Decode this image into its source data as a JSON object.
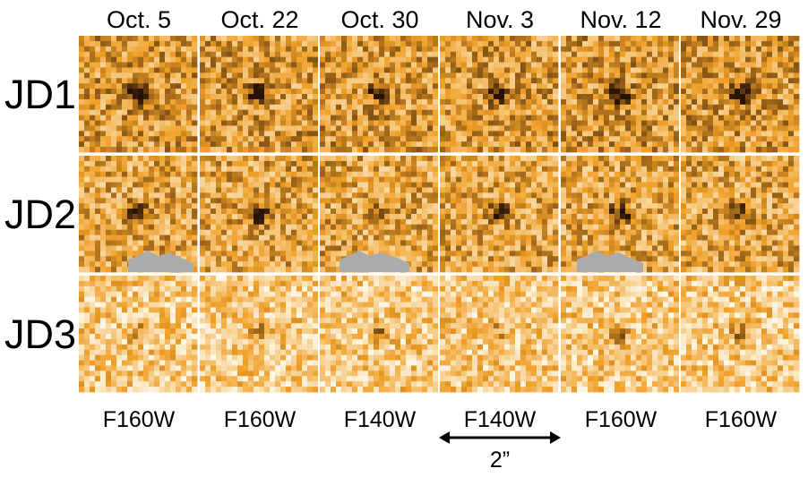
{
  "columns": [
    {
      "date": "Oct. 5",
      "filter": "F160W"
    },
    {
      "date": "Oct. 22",
      "filter": "F160W"
    },
    {
      "date": "Oct. 30",
      "filter": "F140W"
    },
    {
      "date": "Nov. 3",
      "filter": "F140W"
    },
    {
      "date": "Nov. 12",
      "filter": "F160W"
    },
    {
      "date": "Nov. 29",
      "filter": "F160W"
    }
  ],
  "rows": [
    {
      "label": "JD1"
    },
    {
      "label": "JD2"
    },
    {
      "label": "JD3"
    }
  ],
  "scale_bar": {
    "label": "2”"
  },
  "colors": {
    "background_orange": "#f0a020",
    "source_dark": "#2a1204",
    "masked_gray": "#ababab"
  }
}
